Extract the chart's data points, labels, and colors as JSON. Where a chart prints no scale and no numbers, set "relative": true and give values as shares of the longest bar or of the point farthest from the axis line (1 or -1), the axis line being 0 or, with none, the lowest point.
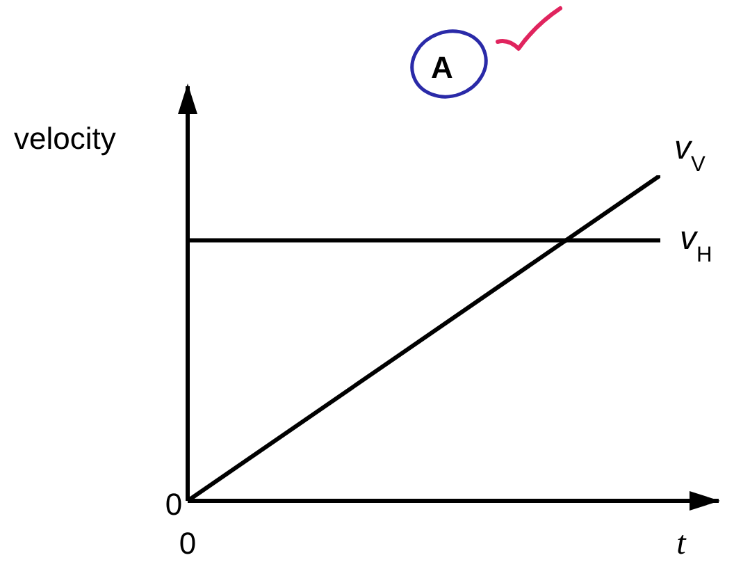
{
  "chart_data": {
    "type": "line",
    "relative": true,
    "xlabel": "t",
    "ylabel": "velocity",
    "categories": [
      null,
      null
    ],
    "annotations": [
      "A",
      "0",
      "0"
    ],
    "series": [
      {
        "name": "v$_{V}$",
        "color": "#000000",
        "values": [
          0,
          1
        ]
      },
      {
        "name": "v$_{H}$",
        "color": "#000000",
        "values": [
          0.8,
          0.8
        ]
      }
    ]
  }
}
